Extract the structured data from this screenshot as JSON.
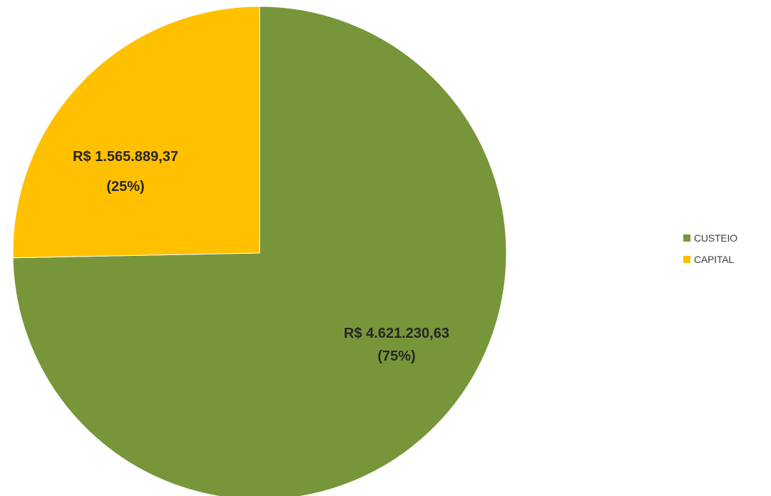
{
  "chart_data": {
    "type": "pie",
    "title": "",
    "start_angle_deg": 0,
    "direction": "clockwise",
    "series": [
      {
        "slices": [
          {
            "name": "CUSTEIO",
            "value": 4621230.63,
            "percent": 75,
            "value_label": "R$ 4.621.230,63",
            "percent_label": "(75%)",
            "color": "#77963A"
          },
          {
            "name": "CAPITAL",
            "value": 1565889.37,
            "percent": 25,
            "value_label": "R$ 1.565.889,37",
            "percent_label": "(25%)",
            "color": "#FFC000"
          }
        ]
      }
    ],
    "legend": {
      "position": "right",
      "items": [
        "CUSTEIO",
        "CAPITAL"
      ]
    }
  }
}
